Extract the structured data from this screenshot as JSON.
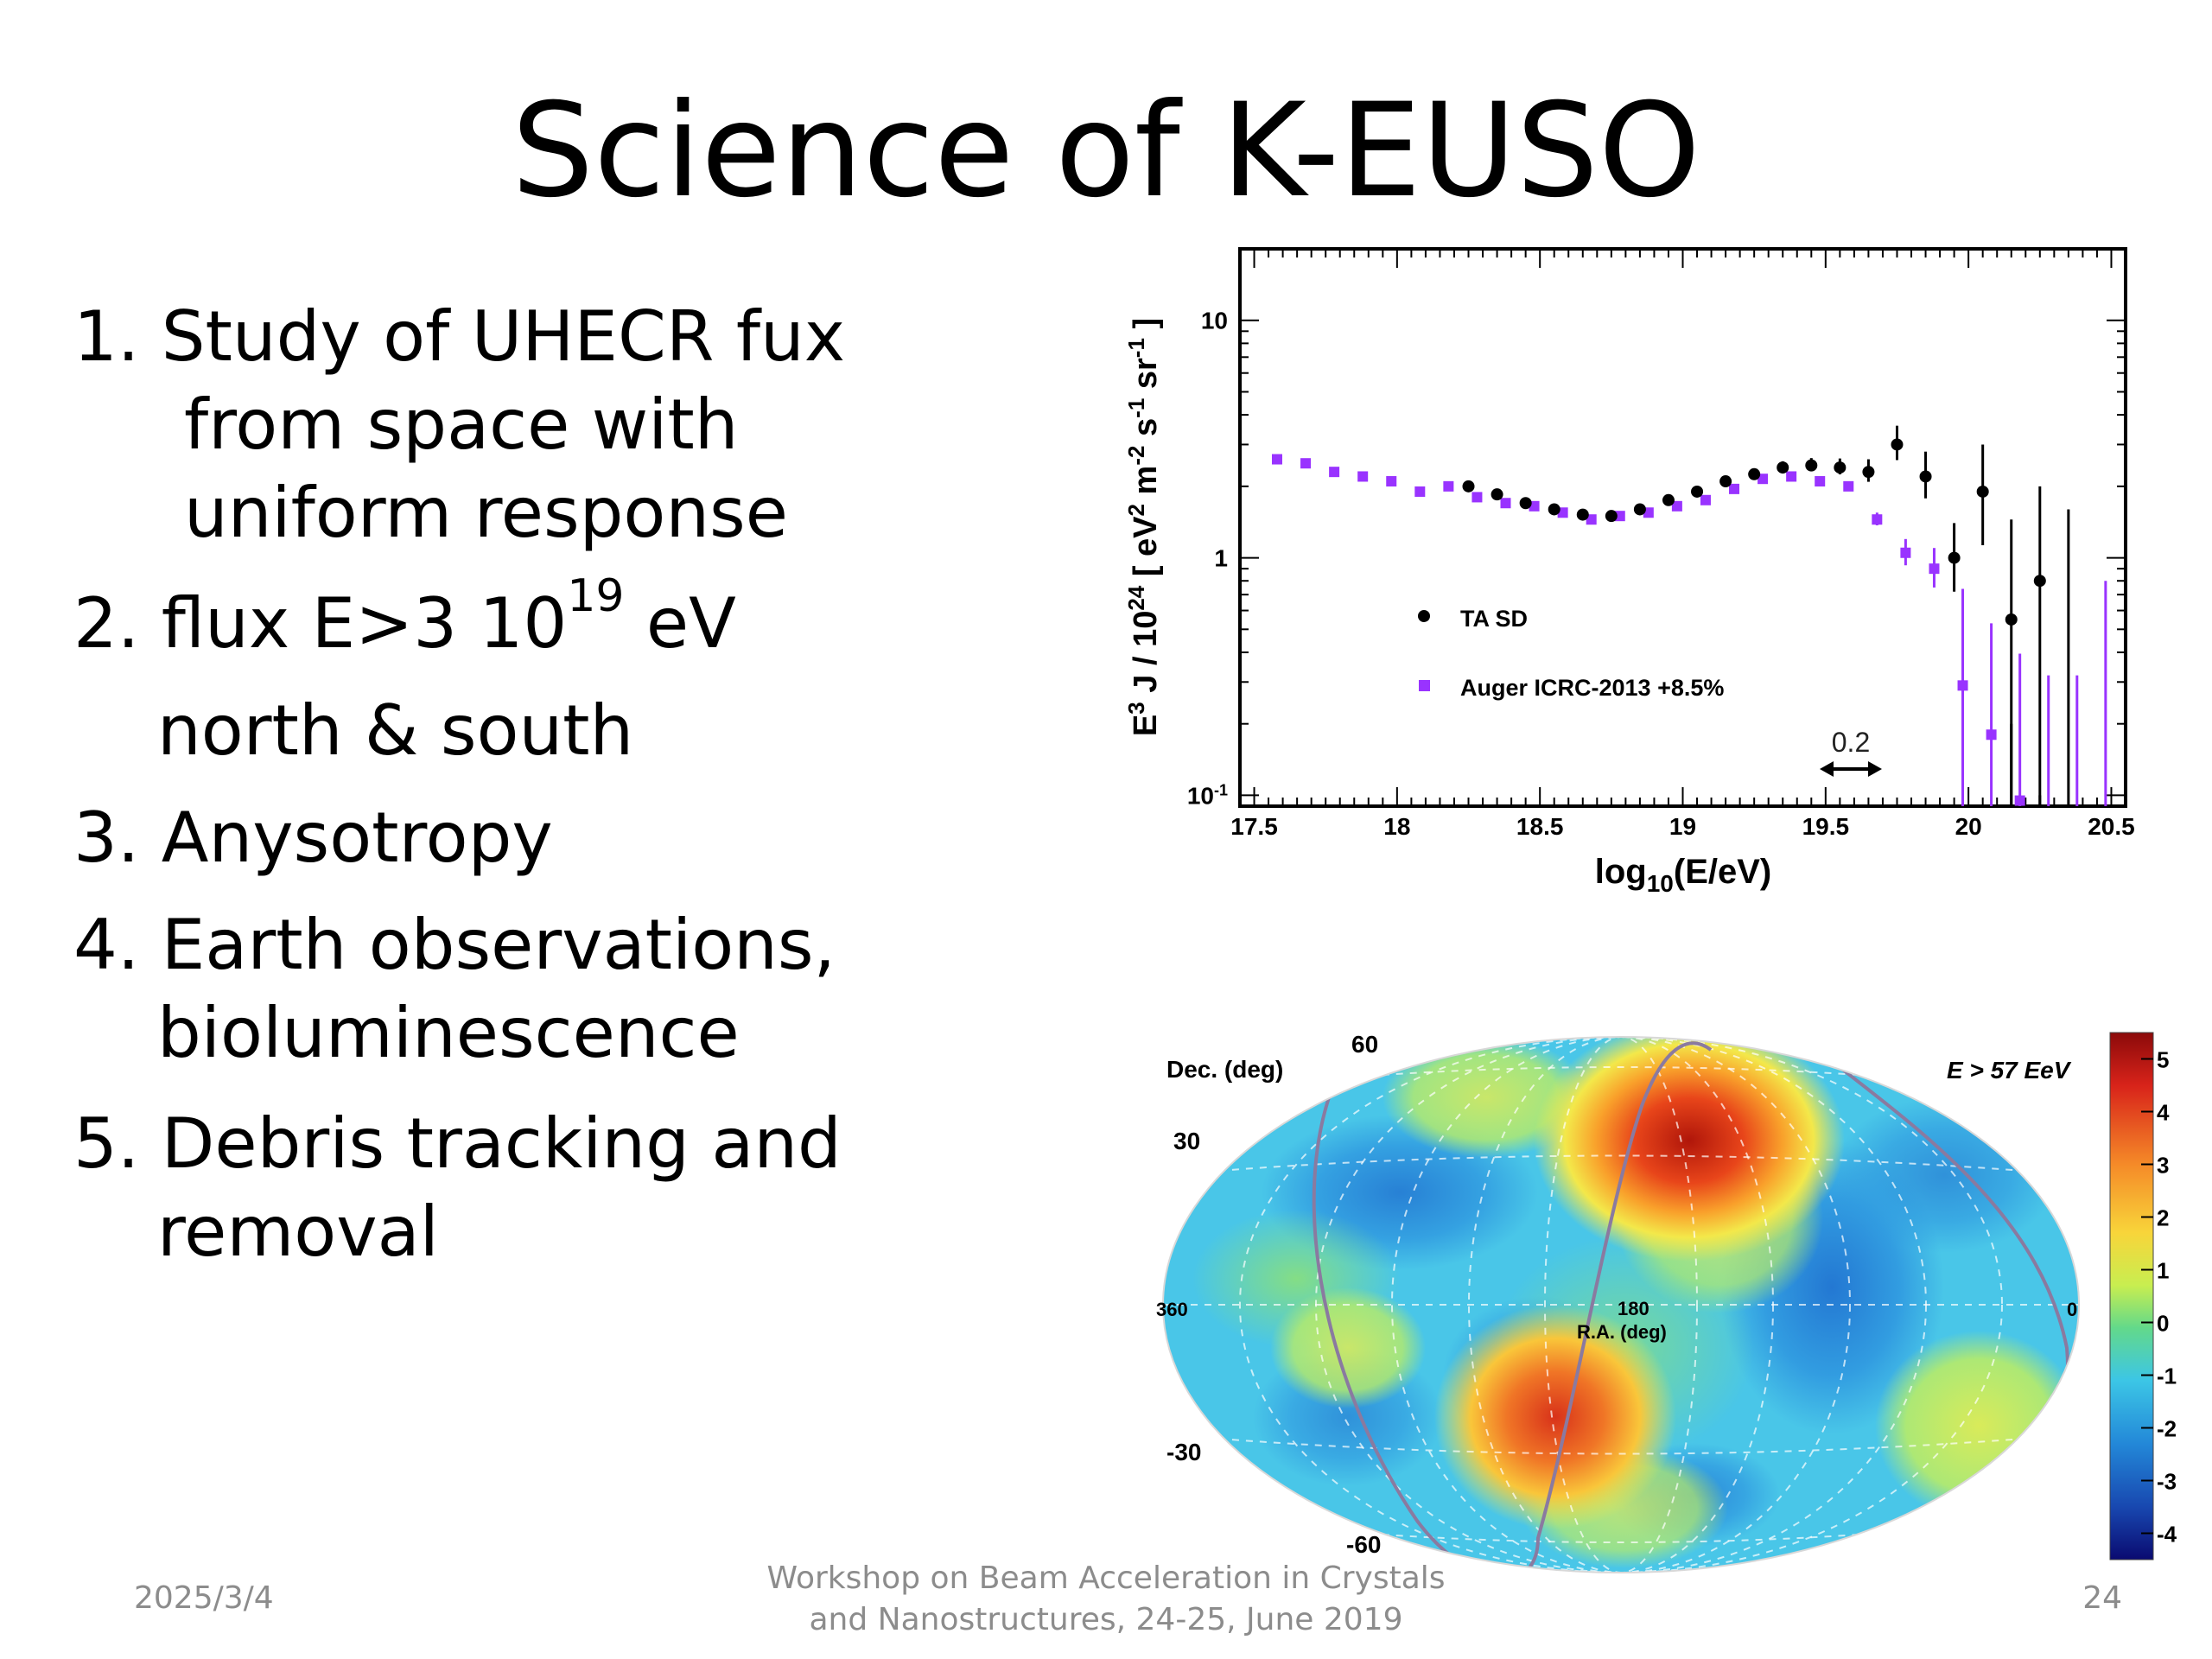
{
  "slide": {
    "title": "Science of K-EUSO",
    "bullets": [
      {
        "lines": [
          "1. Study of UHECR fux",
          "from space with",
          "uniform response"
        ]
      },
      {
        "pre": "2. flux E>3 10",
        "sup": "19",
        "post": " eV",
        "line2": "north & south"
      },
      {
        "lines": [
          "3. Anysotropy"
        ]
      },
      {
        "lines": [
          "4. Earth observations,",
          "bioluminescence"
        ]
      },
      {
        "lines": [
          "5. Debris tracking and",
          "removal"
        ]
      }
    ],
    "footer": {
      "date": "2025/3/4",
      "center_line1": "Workshop on Beam Acceleration in Crystals",
      "center_line2": "and Nanostructures, 24-25, June 2019",
      "page": "24"
    }
  },
  "chart_data": [
    {
      "type": "scatter",
      "xlabel": "log10(E/eV)",
      "ylabel": "E3 J / 1024 [ eV2 m-2 s-1 sr-1 ]",
      "x_scale": "linear",
      "y_scale": "log",
      "xlim": [
        17.45,
        20.55
      ],
      "ylim": [
        0.09,
        20
      ],
      "x_ticks": [
        "17.5",
        "18",
        "18.5",
        "19",
        "19.5",
        "20",
        "20.5"
      ],
      "y_ticks": [
        "10",
        "1",
        "10-1"
      ],
      "annotation": "0.2",
      "series": [
        {
          "name": "TA SD",
          "color": "#000000",
          "x": [
            18.25,
            18.35,
            18.45,
            18.55,
            18.65,
            18.75,
            18.85,
            18.95,
            19.05,
            19.15,
            19.25,
            19.35,
            19.45,
            19.55,
            19.65,
            19.75,
            19.85,
            19.95,
            20.05,
            20.15,
            20.25
          ],
          "y": [
            2.0,
            1.85,
            1.7,
            1.6,
            1.52,
            1.5,
            1.6,
            1.75,
            1.9,
            2.1,
            2.25,
            2.4,
            2.45,
            2.4,
            2.3,
            3.0,
            2.2,
            1.0,
            1.9,
            0.55,
            0.8
          ]
        },
        {
          "name": "Auger ICRC-2013 +8.5%",
          "color": "#9933ff",
          "x": [
            17.58,
            17.68,
            17.78,
            17.88,
            17.98,
            18.08,
            18.18,
            18.28,
            18.38,
            18.48,
            18.58,
            18.68,
            18.78,
            18.88,
            18.98,
            19.08,
            19.18,
            19.28,
            19.38,
            19.48,
            19.58,
            19.68,
            19.78,
            19.88,
            19.98,
            20.08,
            20.18
          ],
          "y": [
            2.6,
            2.5,
            2.3,
            2.2,
            2.1,
            1.9,
            2.0,
            1.8,
            1.7,
            1.65,
            1.55,
            1.45,
            1.5,
            1.55,
            1.65,
            1.75,
            1.95,
            2.15,
            2.2,
            2.1,
            2.0,
            1.45,
            1.05,
            0.9,
            0.29,
            0.18,
            0.095
          ]
        }
      ]
    },
    {
      "type": "heatmap",
      "title": "E > 57 EeV",
      "xlabel": "R.A. (deg)",
      "ylabel": "Dec. (deg)",
      "x_ticks": [
        "360",
        "180",
        "0"
      ],
      "y_ticks": [
        "60",
        "30",
        "-30",
        "-60"
      ],
      "colorbar_ticks": [
        "5",
        "4",
        "3",
        "2",
        "1",
        "0",
        "-1",
        "-2",
        "-3",
        "-4"
      ],
      "colorbar_range": [
        -4.5,
        5.5
      ],
      "hotspots": [
        {
          "ra": 150,
          "dec": 45,
          "significance": 5
        },
        {
          "ra": 190,
          "dec": -35,
          "significance": 4
        }
      ]
    }
  ]
}
